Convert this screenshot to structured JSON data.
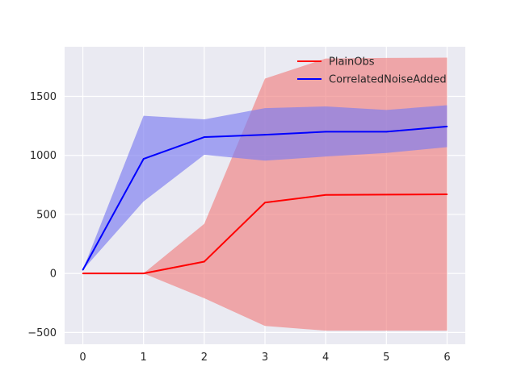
{
  "chart_data": {
    "type": "line",
    "title": "",
    "xlabel": "",
    "ylabel": "",
    "x": [
      0,
      1,
      2,
      3,
      4,
      5,
      6
    ],
    "xlim": [
      -0.3,
      6.3
    ],
    "ylim": [
      -600,
      1920
    ],
    "x_ticks": [
      0,
      1,
      2,
      3,
      4,
      5,
      6
    ],
    "y_ticks": [
      -500,
      0,
      500,
      1000,
      1500
    ],
    "y_tick_labels": [
      "−500",
      "0",
      "500",
      "1000",
      "1500"
    ],
    "grid": true,
    "legend_position": "top-right",
    "background_color": "#eaeaf2",
    "series": [
      {
        "name": "PlainObs",
        "color": "#ff0000",
        "band_color": "#f08080",
        "values": [
          0,
          0,
          100,
          600,
          665,
          668,
          670
        ],
        "lower": [
          0,
          0,
          -210,
          -445,
          -485,
          -485,
          -485
        ],
        "upper": [
          0,
          0,
          420,
          1650,
          1820,
          1825,
          1828
        ]
      },
      {
        "name": "CorrelatedNoiseAdded",
        "color": "#0000ff",
        "band_color": "#7b7bf0",
        "values": [
          30,
          970,
          1155,
          1175,
          1200,
          1200,
          1245
        ],
        "lower": [
          30,
          610,
          1005,
          955,
          990,
          1020,
          1070
        ],
        "upper": [
          30,
          1335,
          1305,
          1400,
          1415,
          1385,
          1425
        ]
      }
    ]
  }
}
